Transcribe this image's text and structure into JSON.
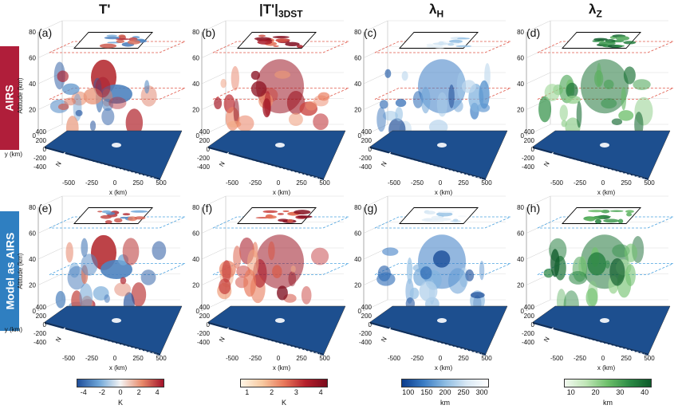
{
  "columns": [
    {
      "title": "T'",
      "title_sub": ""
    },
    {
      "title": "|T'|",
      "title_sub": "3DST"
    },
    {
      "title": "λ",
      "title_sub": "H"
    },
    {
      "title": "λ",
      "title_sub": "Z"
    }
  ],
  "rows": [
    {
      "label": "AIRS",
      "color": "#b01e3a"
    },
    {
      "label": "Model as AIRS",
      "color": "#2f7fc1"
    }
  ],
  "panel_tags": [
    "(a)",
    "(b)",
    "(c)",
    "(d)",
    "(e)",
    "(f)",
    "(g)",
    "(h)"
  ],
  "axes": {
    "altitude_label": "Altitude (km)",
    "altitude_ticks": [
      "0",
      "20",
      "40",
      "60",
      "80"
    ],
    "y_label": "y (km)",
    "y_ticks": [
      "400",
      "200",
      "0",
      "-200",
      "-400"
    ],
    "x_label": "x (km)",
    "x_ticks": [
      "-500",
      "-250",
      "0",
      "250",
      "500"
    ],
    "north_label": "N"
  },
  "colorbars": [
    {
      "ticks": [
        "-4",
        "-2",
        "0",
        "2",
        "4"
      ],
      "unit": "K",
      "colors": [
        "#1f4e9a",
        "#6ea6d8",
        "#f4f4f4",
        "#e88a6a",
        "#a3132a"
      ]
    },
    {
      "ticks": [
        "1",
        "2",
        "3",
        "4"
      ],
      "unit": "K",
      "colors": [
        "#fff6e6",
        "#f7c9a0",
        "#e8785a",
        "#b5202c",
        "#7a0a1c"
      ]
    },
    {
      "ticks": [
        "100",
        "150",
        "200",
        "250",
        "300"
      ],
      "unit": "km",
      "colors": [
        "#0b3c8c",
        "#3a7cc4",
        "#8cbbe2",
        "#d8e8f4",
        "#ffffff"
      ]
    },
    {
      "ticks": [
        "10",
        "20",
        "30",
        "40"
      ],
      "unit": "km",
      "colors": [
        "#f2faf0",
        "#bfe5b6",
        "#6dbf6a",
        "#2c8b45",
        "#0d5a2a"
      ]
    }
  ],
  "colors": {
    "airs_plane_dash": "#e0584a",
    "model_plane_dash": "#4aa2e0",
    "ocean": "#1d4f8f"
  }
}
